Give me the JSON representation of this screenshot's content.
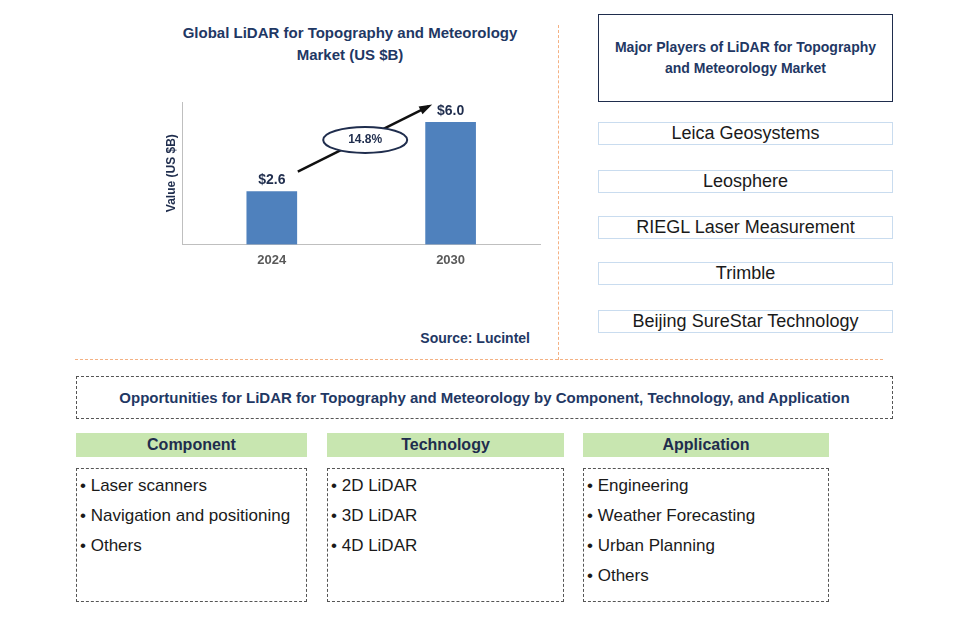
{
  "chart_data": {
    "type": "bar",
    "title": "Global LiDAR for Topography and Meteorology Market (US $B)",
    "y_label": "Value (US $B)",
    "categories": [
      "2024",
      "2030"
    ],
    "values": [
      2.6,
      6.0
    ],
    "value_labels": [
      "$2.6",
      "$6.0"
    ],
    "color": "#4f81bd",
    "ylim": [
      0,
      7
    ],
    "tick_labels": "x",
    "grid": false,
    "data_labels": true,
    "annotations": [
      {
        "text": "14.8%"
      }
    ],
    "source": "Source: Lucintel"
  },
  "players": {
    "title": "Major Players of LiDAR for Topography and Meteorology Market",
    "items": [
      "Leica Geosystems",
      "Leosphere",
      "RIEGL Laser Measurement",
      "Trimble",
      "Beijing SureStar Technology"
    ]
  },
  "opportunities": {
    "title": "Opportunities for LiDAR for Topography and Meteorology by Component, Technology, and Application",
    "columns": [
      {
        "heading": "Component",
        "items": [
          "Laser scanners",
          "Navigation and positioning",
          "Others"
        ]
      },
      {
        "heading": "Technology",
        "items": [
          "2D LiDAR",
          "3D LiDAR",
          "4D LiDAR"
        ]
      },
      {
        "heading": "Application",
        "items": [
          "Engineering",
          "Weather Forecasting",
          "Urban Planning",
          "Others"
        ]
      }
    ]
  }
}
